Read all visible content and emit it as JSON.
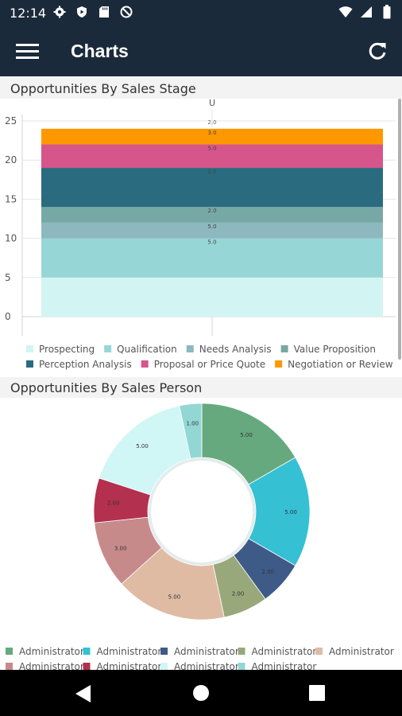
{
  "status": {
    "time": "12:14",
    "left_icons": [
      "gear-icon",
      "shield-icon",
      "sd-card-icon",
      "do-not-disturb-icon"
    ],
    "right_icons": [
      "wifi-icon",
      "cellular-icon",
      "battery-icon"
    ]
  },
  "app_bar": {
    "title": "Charts",
    "menu_icon": "hamburger-menu-icon",
    "refresh_icon": "refresh-icon"
  },
  "chart_data": [
    {
      "type": "bar",
      "stacked": true,
      "title": "Opportunities By Sales Stage",
      "categories": [
        "U"
      ],
      "ylim": [
        0,
        25
      ],
      "yticks": [
        0,
        5,
        10,
        15,
        20,
        25
      ],
      "grid": true,
      "legend_position": "bottom",
      "series": [
        {
          "name": "Prospecting",
          "values": [
            5
          ],
          "label": "",
          "color": "#d2f5f3"
        },
        {
          "name": "Qualification",
          "values": [
            5
          ],
          "label": "5.0",
          "color": "#97d6d6"
        },
        {
          "name": "Needs Analysis",
          "values": [
            2
          ],
          "label": "5.0",
          "color": "#8db8bf"
        },
        {
          "name": "Value Proposition",
          "values": [
            2
          ],
          "label": "2.0",
          "color": "#76a9a6"
        },
        {
          "name": "Perception Analysis",
          "values": [
            5
          ],
          "label": "2.0",
          "color": "#2a6b80"
        },
        {
          "name": "Proposal or Price Quote",
          "values": [
            3
          ],
          "label": "5.0",
          "color": "#d6558a"
        },
        {
          "name": "Negotiation or Review",
          "values": [
            2
          ],
          "label": "3.0",
          "color": "#ff9800"
        }
      ],
      "top_label": "2.0"
    },
    {
      "type": "pie",
      "donut": true,
      "title": "Opportunities By Sales Person",
      "legend_position": "bottom",
      "slices": [
        {
          "name": "Administrator",
          "value": 5,
          "label": "5.00",
          "color": "#66a97e"
        },
        {
          "name": "Administrator",
          "value": 5,
          "label": "5.00",
          "color": "#35c0d4"
        },
        {
          "name": "Administrator",
          "value": 2,
          "label": "2.00",
          "color": "#3e5b88"
        },
        {
          "name": "Administrator",
          "value": 2,
          "label": "2.00",
          "color": "#99a87a"
        },
        {
          "name": "Administrator",
          "value": 5,
          "label": "5.00",
          "color": "#dfbba4"
        },
        {
          "name": "Administrator",
          "value": 3,
          "label": "3.00",
          "color": "#c78a8a"
        },
        {
          "name": "Administrator",
          "value": 2,
          "label": "2.00",
          "color": "#b3304f"
        },
        {
          "name": "Administrator",
          "value": 5,
          "label": "5.00",
          "color": "#d0f6f5"
        },
        {
          "name": "Administrator",
          "value": 1,
          "label": "1.00",
          "color": "#93d7d4"
        }
      ]
    }
  ],
  "nav": {
    "back_icon": "back-triangle-icon",
    "home_icon": "home-circle-icon",
    "recents_icon": "recents-square-icon"
  }
}
